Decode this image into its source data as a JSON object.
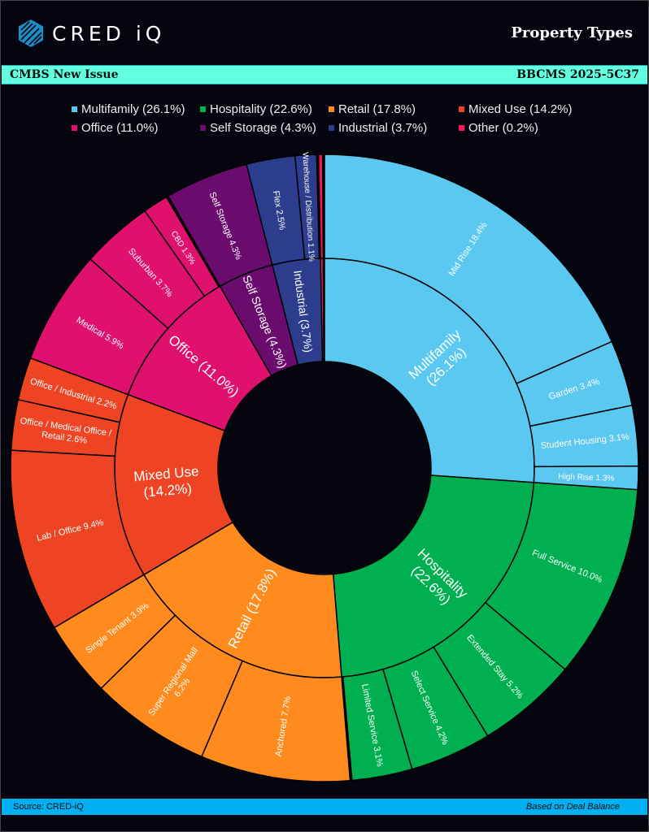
{
  "header": {
    "logo_text": "CRED iQ",
    "title": "Property Types"
  },
  "subheader": {
    "left": "CMBS New Issue",
    "right": "BBCMS 2025-5C37"
  },
  "footer": {
    "source": "Source:  CRED-iQ",
    "note": "Based on Deal Balance"
  },
  "chart_data": {
    "type": "sunburst",
    "title": "Property Types",
    "legend_position": "top",
    "series": [
      {
        "name": "Multifamily",
        "value": 26.1,
        "color": "#5BC8F2",
        "legend": "Multifamily (26.1%)",
        "label": "Multifamily\n(26.1%)",
        "children": [
          {
            "name": "Mid Rise",
            "value": 18.4,
            "label": "Mid Rise 18.4%"
          },
          {
            "name": "Garden",
            "value": 3.4,
            "label": "Garden 3.4%"
          },
          {
            "name": "Student Housing",
            "value": 3.1,
            "label": "Student Housing 3.1%"
          },
          {
            "name": "High Rise",
            "value": 1.3,
            "label": "High Rise 1.3%"
          }
        ]
      },
      {
        "name": "Hospitality",
        "value": 22.6,
        "color": "#00B050",
        "legend": "Hospitality (22.6%)",
        "label": "Hospitality\n(22.6%)",
        "children": [
          {
            "name": "Full Service",
            "value": 10.0,
            "label": "Full Service 10.0%"
          },
          {
            "name": "Extended Stay",
            "value": 5.2,
            "label": "Extended Stay 5.2%"
          },
          {
            "name": "Select Service",
            "value": 4.2,
            "label": "Select Service 4.2%"
          },
          {
            "name": "Limited Service",
            "value": 3.1,
            "label": "Limited Service 3.1%"
          }
        ]
      },
      {
        "name": "Retail",
        "value": 17.8,
        "color": "#FF8A1E",
        "legend": "Retail (17.8%)",
        "label": "Retail (17.8%)",
        "children": [
          {
            "name": "Anchored",
            "value": 7.7,
            "label": "Anchored 7.7%"
          },
          {
            "name": "Super Regional Mall",
            "value": 6.2,
            "label": "Super Regional Mall\n6.2%"
          },
          {
            "name": "Single Tenant",
            "value": 3.9,
            "label": "Single Tenant 3.9%"
          }
        ]
      },
      {
        "name": "Mixed Use",
        "value": 14.2,
        "color": "#EE4423",
        "legend": "Mixed Use (14.2%)",
        "label": "Mixed Use\n(14.2%)",
        "children": [
          {
            "name": "Lab / Office",
            "value": 9.4,
            "label": "Lab / Office 9.4%"
          },
          {
            "name": "Office / Medical Office / Retail",
            "value": 2.6,
            "label": "Office / Medical Office /\nRetail 2.6%"
          },
          {
            "name": "Office / Industrial",
            "value": 2.2,
            "label": "Office / Industrial 2.2%"
          }
        ]
      },
      {
        "name": "Office",
        "value": 11.0,
        "color": "#E0106E",
        "legend": "Office (11.0%)",
        "label": "Office (11.0%)",
        "children": [
          {
            "name": "Medical",
            "value": 5.9,
            "label": "Medical 5.9%"
          },
          {
            "name": "Suburban",
            "value": 3.7,
            "label": "Suburban 3.7%"
          },
          {
            "name": "CBD",
            "value": 1.3,
            "label": "CBD 1.3%"
          }
        ]
      },
      {
        "name": "Self Storage",
        "value": 4.3,
        "color": "#6B0B6E",
        "legend": "Self Storage (4.3%)",
        "label": "Self Storage (4.3%)",
        "children": [
          {
            "name": "Self Storage",
            "value": 4.3,
            "label": "Self Storage 4.3%"
          }
        ]
      },
      {
        "name": "Industrial",
        "value": 3.7,
        "color": "#2B3D8C",
        "legend": "Industrial (3.7%)",
        "label": "Industrial (3.7%)",
        "children": [
          {
            "name": "Flex",
            "value": 2.5,
            "label": "Flex 2.5%"
          },
          {
            "name": "Warehouse / Distribution",
            "value": 1.1,
            "label": "Warehouse / Distribution 1.1%"
          }
        ]
      },
      {
        "name": "Other",
        "value": 0.2,
        "color": "#FF1462",
        "legend": "Other (0.2%)",
        "label": "",
        "children": [
          {
            "name": "Other",
            "value": 0.2,
            "label": ""
          }
        ]
      }
    ]
  }
}
